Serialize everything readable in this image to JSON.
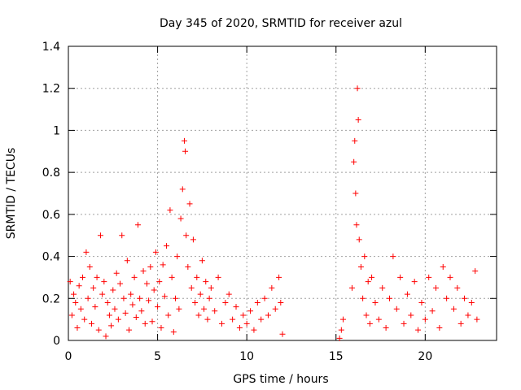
{
  "chart_data": {
    "type": "scatter",
    "title": "Day 345 of 2020, SRMTID for receiver azul",
    "xlabel": "GPS time / hours",
    "ylabel": "SRMTID / TECUs",
    "xlim": [
      0,
      24
    ],
    "ylim": [
      0,
      1.4
    ],
    "xticks": [
      0,
      5,
      10,
      15,
      20
    ],
    "xtick_labels": [
      "0",
      "5",
      "10",
      "15",
      "20"
    ],
    "yticks": [
      0,
      0.2,
      0.4,
      0.6,
      0.8,
      1,
      1.2,
      1.4
    ],
    "ytick_labels": [
      "0",
      "0.2",
      "0.4",
      "0.6",
      "0.8",
      "1",
      "1.2",
      "1.4"
    ],
    "grid": true,
    "marker": "+",
    "series": [
      {
        "name": "SRMTID",
        "color": "#ff0000",
        "points": [
          [
            0.1,
            0.28
          ],
          [
            0.2,
            0.12
          ],
          [
            0.3,
            0.22
          ],
          [
            0.4,
            0.18
          ],
          [
            0.5,
            0.06
          ],
          [
            0.6,
            0.26
          ],
          [
            0.7,
            0.15
          ],
          [
            0.8,
            0.3
          ],
          [
            0.9,
            0.1
          ],
          [
            1.0,
            0.42
          ],
          [
            1.1,
            0.2
          ],
          [
            1.2,
            0.35
          ],
          [
            1.3,
            0.08
          ],
          [
            1.4,
            0.25
          ],
          [
            1.5,
            0.16
          ],
          [
            1.6,
            0.3
          ],
          [
            1.7,
            0.05
          ],
          [
            1.8,
            0.5
          ],
          [
            1.9,
            0.22
          ],
          [
            2.0,
            0.28
          ],
          [
            2.1,
            0.02
          ],
          [
            2.2,
            0.18
          ],
          [
            2.3,
            0.12
          ],
          [
            2.4,
            0.07
          ],
          [
            2.5,
            0.24
          ],
          [
            2.6,
            0.15
          ],
          [
            2.7,
            0.32
          ],
          [
            2.8,
            0.1
          ],
          [
            2.9,
            0.27
          ],
          [
            3.0,
            0.5
          ],
          [
            3.1,
            0.2
          ],
          [
            3.2,
            0.13
          ],
          [
            3.3,
            0.38
          ],
          [
            3.4,
            0.05
          ],
          [
            3.5,
            0.22
          ],
          [
            3.6,
            0.17
          ],
          [
            3.7,
            0.3
          ],
          [
            3.8,
            0.11
          ],
          [
            3.9,
            0.55
          ],
          [
            4.0,
            0.2
          ],
          [
            4.1,
            0.14
          ],
          [
            4.2,
            0.33
          ],
          [
            4.3,
            0.08
          ],
          [
            4.4,
            0.27
          ],
          [
            4.5,
            0.19
          ],
          [
            4.6,
            0.35
          ],
          [
            4.7,
            0.09
          ],
          [
            4.8,
            0.24
          ],
          [
            4.9,
            0.42
          ],
          [
            5.0,
            0.16
          ],
          [
            5.1,
            0.28
          ],
          [
            5.2,
            0.06
          ],
          [
            5.3,
            0.36
          ],
          [
            5.4,
            0.21
          ],
          [
            5.5,
            0.45
          ],
          [
            5.6,
            0.12
          ],
          [
            5.7,
            0.62
          ],
          [
            5.8,
            0.3
          ],
          [
            5.9,
            0.04
          ],
          [
            6.0,
            0.2
          ],
          [
            6.1,
            0.4
          ],
          [
            6.2,
            0.15
          ],
          [
            6.3,
            0.58
          ],
          [
            6.4,
            0.72
          ],
          [
            6.5,
            0.95
          ],
          [
            6.55,
            0.9
          ],
          [
            6.6,
            0.5
          ],
          [
            6.7,
            0.35
          ],
          [
            6.8,
            0.65
          ],
          [
            6.9,
            0.25
          ],
          [
            7.0,
            0.48
          ],
          [
            7.1,
            0.18
          ],
          [
            7.2,
            0.3
          ],
          [
            7.3,
            0.12
          ],
          [
            7.4,
            0.22
          ],
          [
            7.5,
            0.38
          ],
          [
            7.6,
            0.15
          ],
          [
            7.7,
            0.28
          ],
          [
            7.8,
            0.1
          ],
          [
            7.9,
            0.2
          ],
          [
            8.0,
            0.25
          ],
          [
            8.2,
            0.14
          ],
          [
            8.4,
            0.3
          ],
          [
            8.6,
            0.08
          ],
          [
            8.8,
            0.18
          ],
          [
            9.0,
            0.22
          ],
          [
            9.2,
            0.1
          ],
          [
            9.4,
            0.16
          ],
          [
            9.6,
            0.06
          ],
          [
            9.8,
            0.12
          ],
          [
            10.0,
            0.08
          ],
          [
            10.2,
            0.14
          ],
          [
            10.4,
            0.05
          ],
          [
            10.6,
            0.18
          ],
          [
            10.8,
            0.1
          ],
          [
            11.0,
            0.2
          ],
          [
            11.2,
            0.12
          ],
          [
            11.4,
            0.25
          ],
          [
            11.6,
            0.15
          ],
          [
            11.8,
            0.3
          ],
          [
            11.9,
            0.18
          ],
          [
            12.0,
            0.03
          ],
          [
            15.2,
            0.01
          ],
          [
            15.3,
            0.05
          ],
          [
            15.4,
            0.1
          ],
          [
            15.9,
            0.25
          ],
          [
            16.0,
            0.85
          ],
          [
            16.05,
            0.95
          ],
          [
            16.1,
            0.7
          ],
          [
            16.15,
            0.55
          ],
          [
            16.2,
            1.2
          ],
          [
            16.25,
            1.05
          ],
          [
            16.3,
            0.48
          ],
          [
            16.4,
            0.35
          ],
          [
            16.5,
            0.2
          ],
          [
            16.6,
            0.4
          ],
          [
            16.7,
            0.12
          ],
          [
            16.8,
            0.28
          ],
          [
            16.9,
            0.08
          ],
          [
            17.0,
            0.3
          ],
          [
            17.2,
            0.18
          ],
          [
            17.4,
            0.1
          ],
          [
            17.6,
            0.25
          ],
          [
            17.8,
            0.06
          ],
          [
            18.0,
            0.2
          ],
          [
            18.2,
            0.4
          ],
          [
            18.4,
            0.15
          ],
          [
            18.6,
            0.3
          ],
          [
            18.8,
            0.08
          ],
          [
            19.0,
            0.22
          ],
          [
            19.2,
            0.12
          ],
          [
            19.4,
            0.28
          ],
          [
            19.6,
            0.05
          ],
          [
            19.8,
            0.18
          ],
          [
            20.0,
            0.1
          ],
          [
            20.2,
            0.3
          ],
          [
            20.4,
            0.14
          ],
          [
            20.6,
            0.25
          ],
          [
            20.8,
            0.06
          ],
          [
            21.0,
            0.35
          ],
          [
            21.2,
            0.2
          ],
          [
            21.4,
            0.3
          ],
          [
            21.6,
            0.15
          ],
          [
            21.8,
            0.25
          ],
          [
            22.0,
            0.08
          ],
          [
            22.2,
            0.2
          ],
          [
            22.4,
            0.12
          ],
          [
            22.6,
            0.18
          ],
          [
            22.8,
            0.33
          ],
          [
            22.9,
            0.1
          ]
        ]
      }
    ]
  }
}
